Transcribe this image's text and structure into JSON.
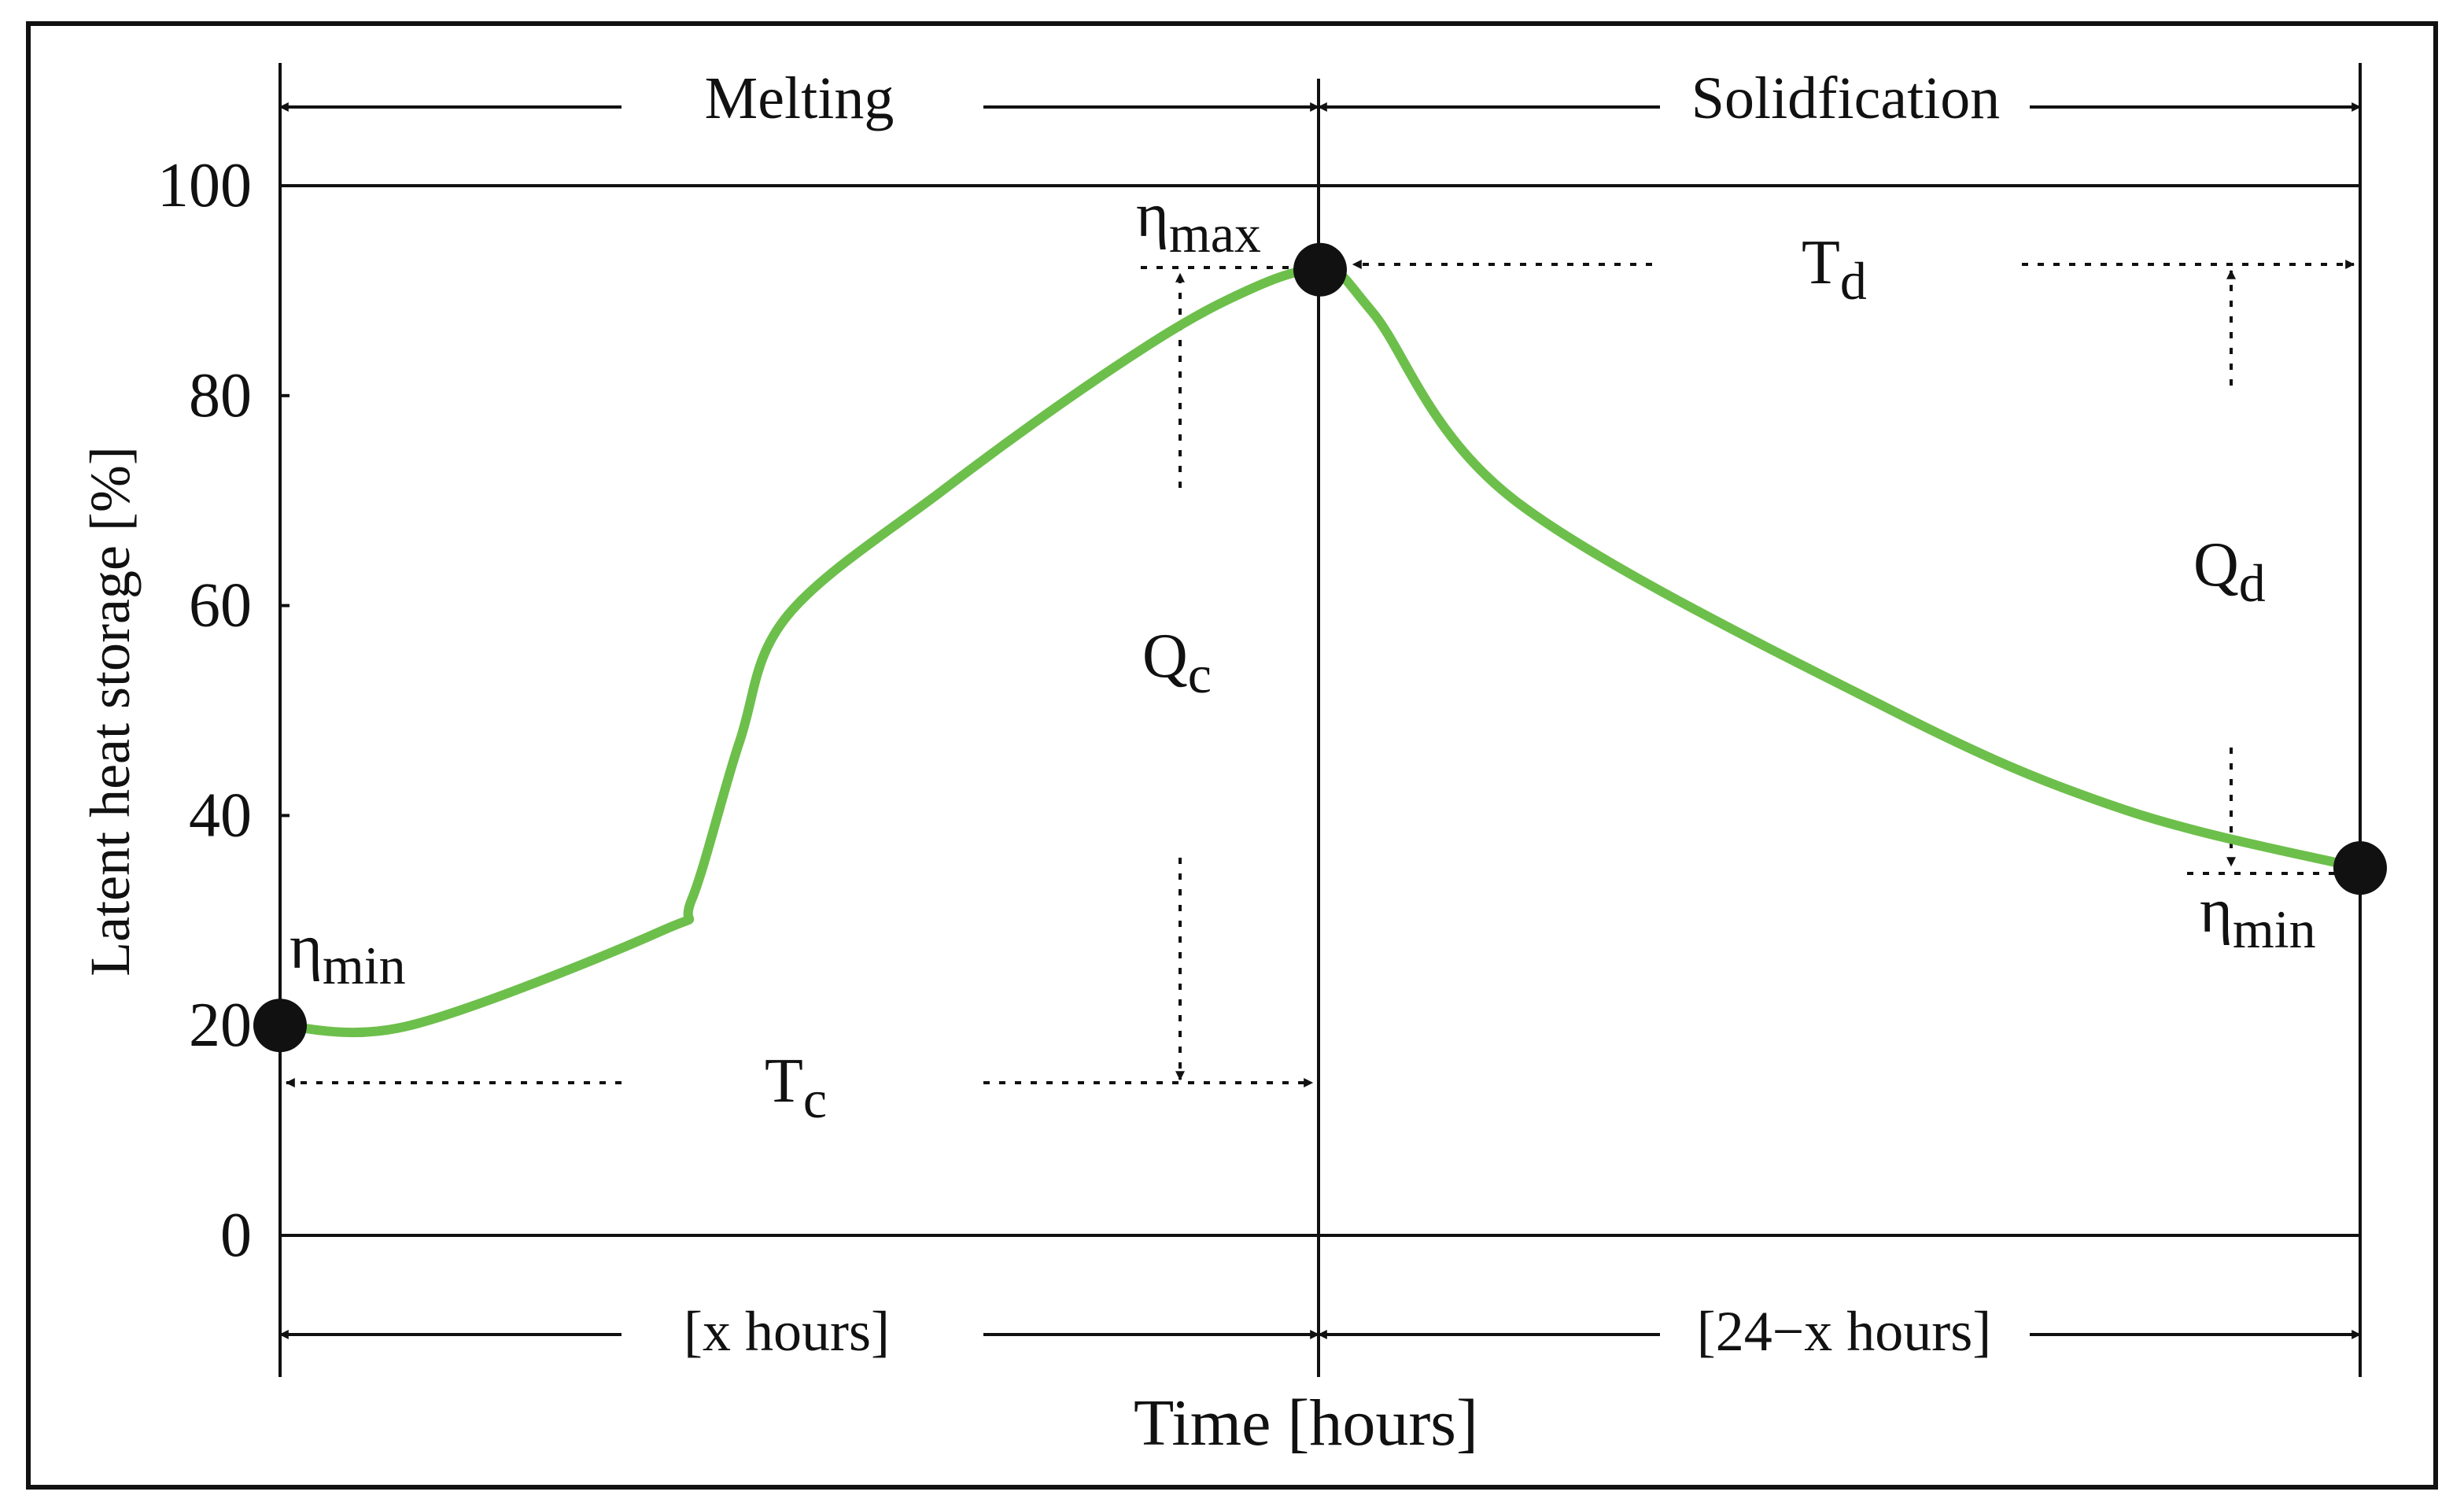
{
  "chart_data": {
    "type": "line",
    "ylabel": "Latent heat storage  [%]",
    "xlabel": "Time [hours]",
    "xlim": [
      0,
      24
    ],
    "ylim": [
      0,
      100
    ],
    "yticks": [
      0,
      20,
      40,
      60,
      80,
      100
    ],
    "color": "#6dbf4b",
    "x": [
      0,
      1.5,
      4.4,
      4.75,
      5.3,
      5.85,
      7.65,
      9.5,
      10.9,
      12,
      12.6,
      14.25,
      18.6,
      21.3,
      24
    ],
    "values": [
      20,
      20,
      29,
      32,
      47,
      59,
      71,
      82,
      89,
      92,
      88,
      70,
      50,
      40.5,
      35
    ],
    "points": {
      "x": [
        0,
        12,
        24
      ],
      "values": [
        20,
        92,
        35
      ]
    },
    "phases": [
      {
        "label": "Melting",
        "duration": "[x hours]"
      },
      {
        "label": "Solidfication",
        "duration": "[24−x hours]"
      }
    ],
    "annotations": [
      {
        "label": "η",
        "subscript": "max"
      },
      {
        "label": "η",
        "subscript": "min"
      },
      {
        "label": "η",
        "subscript": "min"
      },
      {
        "label": "Q",
        "subscript": "c"
      },
      {
        "label": "Q",
        "subscript": "d"
      },
      {
        "label": "T",
        "subscript": "c"
      },
      {
        "label": "T",
        "subscript": "d"
      }
    ]
  }
}
